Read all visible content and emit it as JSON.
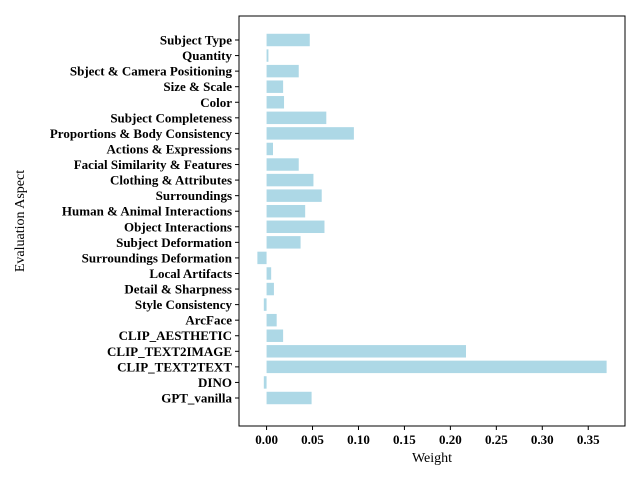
{
  "chart_data": {
    "type": "bar",
    "orientation": "horizontal",
    "xlabel": "Weight",
    "ylabel": "Evaluation Aspect",
    "xlim": [
      -0.03,
      0.39
    ],
    "xticks": [
      0.0,
      0.05,
      0.1,
      0.15,
      0.2,
      0.25,
      0.3,
      0.35
    ],
    "xtick_labels": [
      "0.00",
      "0.05",
      "0.10",
      "0.15",
      "0.20",
      "0.25",
      "0.30",
      "0.35"
    ],
    "bar_color": "#add8e6",
    "grid": false,
    "categories": [
      "Subject Type",
      "Quantity",
      "Sbject & Camera Positioning",
      "Size & Scale",
      "Color",
      "Subject Completeness",
      "Proportions & Body Consistency",
      "Actions & Expressions",
      "Facial Similarity & Features",
      "Clothing & Attributes",
      "Surroundings",
      "Human & Animal Interactions",
      "Object Interactions",
      "Subject Deformation",
      "Surroundings Deformation",
      "Local Artifacts",
      "Detail & Sharpness",
      "Style Consistency",
      "ArcFace",
      "CLIP_AESTHETIC",
      "CLIP_TEXT2IMAGE",
      "CLIP_TEXT2TEXT",
      "DINO",
      "GPT_vanilla"
    ],
    "values": [
      0.047,
      0.002,
      0.035,
      0.018,
      0.019,
      0.065,
      0.095,
      0.007,
      0.035,
      0.051,
      0.06,
      0.042,
      0.063,
      0.037,
      -0.01,
      0.005,
      0.008,
      -0.003,
      0.011,
      0.018,
      0.217,
      0.37,
      -0.003,
      0.049
    ]
  }
}
